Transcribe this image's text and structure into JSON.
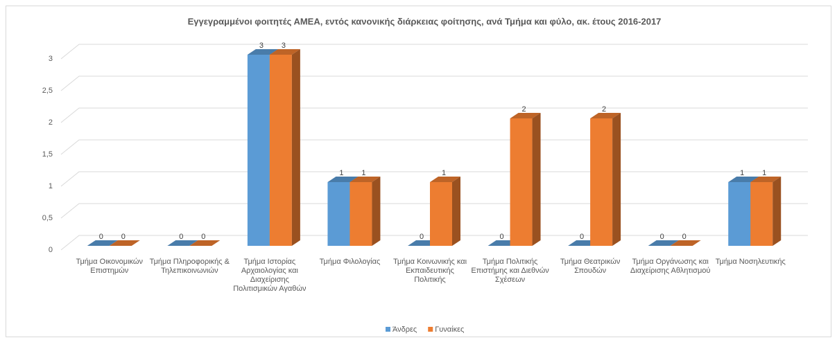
{
  "chart_data": {
    "type": "bar3d",
    "title": "Εγγεγραμμένοι φοιτητές ΑΜΕΑ, εντός κανονικής διάρκειας φοίτησης, ανά Τμήμα και φύλο, ακ. έτους 2016-2017",
    "categories": [
      "Τμήμα Οικονομικών Επιστημών",
      "Τμήμα Πληροφορικής & Τηλεπικοινωνιών",
      "Τμήμα Ιστορίας Αρχαιολογίας και Διαχείρισης Πολιτισμικών Αγαθών",
      "Τμήμα Φιλολογίας",
      "Τμήμα Κοινωνικής και Εκπαιδευτικής Πολιτικής",
      "Τμήμα Πολιτικής Επιστήμης και Διεθνών Σχέσεων",
      "Τμήμα Θεατρικών Σπουδών",
      "Τμήμα Οργάνωσης και Διαχείρισης Αθλητισμού",
      "Τμήμα Νοσηλευτικής"
    ],
    "series": [
      {
        "name": "Άνδρες",
        "color": "#5b9bd5",
        "values": [
          0,
          0,
          3,
          1,
          0,
          0,
          0,
          0,
          1
        ]
      },
      {
        "name": "Γυναίκες",
        "color": "#ed7d31",
        "values": [
          0,
          0,
          3,
          1,
          1,
          2,
          2,
          0,
          1
        ]
      }
    ],
    "ylim": [
      0,
      3
    ],
    "yticks": [
      0,
      {
        "value": 0.5,
        "label": "0,5"
      },
      1,
      {
        "value": 1.5,
        "label": "1,5"
      },
      2,
      {
        "value": 2.5,
        "label": "2,5"
      },
      3
    ],
    "grid": true,
    "legend": "bottom"
  }
}
